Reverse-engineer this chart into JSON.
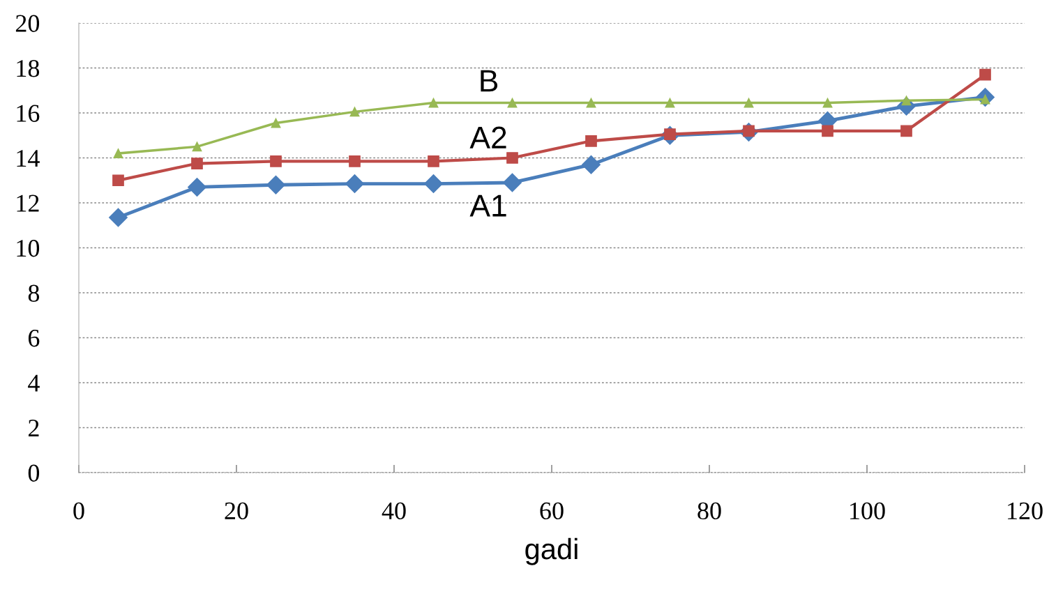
{
  "chart_data": {
    "type": "line",
    "xlabel": "gadi",
    "x": [
      5,
      15,
      25,
      35,
      45,
      55,
      65,
      75,
      85,
      95,
      105,
      115
    ],
    "series": [
      {
        "name": "A1",
        "color": "#4a7ebb",
        "marker": "diamond",
        "values": [
          11.35,
          12.7,
          12.8,
          12.85,
          12.85,
          12.9,
          13.7,
          15.0,
          15.15,
          15.65,
          16.3,
          16.7
        ]
      },
      {
        "name": "A2",
        "color": "#be4b48",
        "marker": "square",
        "values": [
          13.0,
          13.75,
          13.85,
          13.85,
          13.85,
          14.0,
          14.75,
          15.05,
          15.2,
          15.2,
          15.2,
          17.7
        ]
      },
      {
        "name": "B",
        "color": "#98b954",
        "marker": "triangle",
        "values": [
          14.2,
          14.5,
          15.55,
          16.05,
          16.45,
          16.45,
          16.45,
          16.45,
          16.45,
          16.45,
          16.55,
          16.6
        ]
      }
    ],
    "xlim": [
      0,
      120
    ],
    "xticks": [
      0,
      20,
      40,
      60,
      80,
      100,
      120
    ],
    "ylim": [
      0,
      20
    ],
    "yticks": [
      0,
      2,
      4,
      6,
      8,
      10,
      12,
      14,
      16,
      18,
      20
    ],
    "grid": "y",
    "legend": false
  }
}
